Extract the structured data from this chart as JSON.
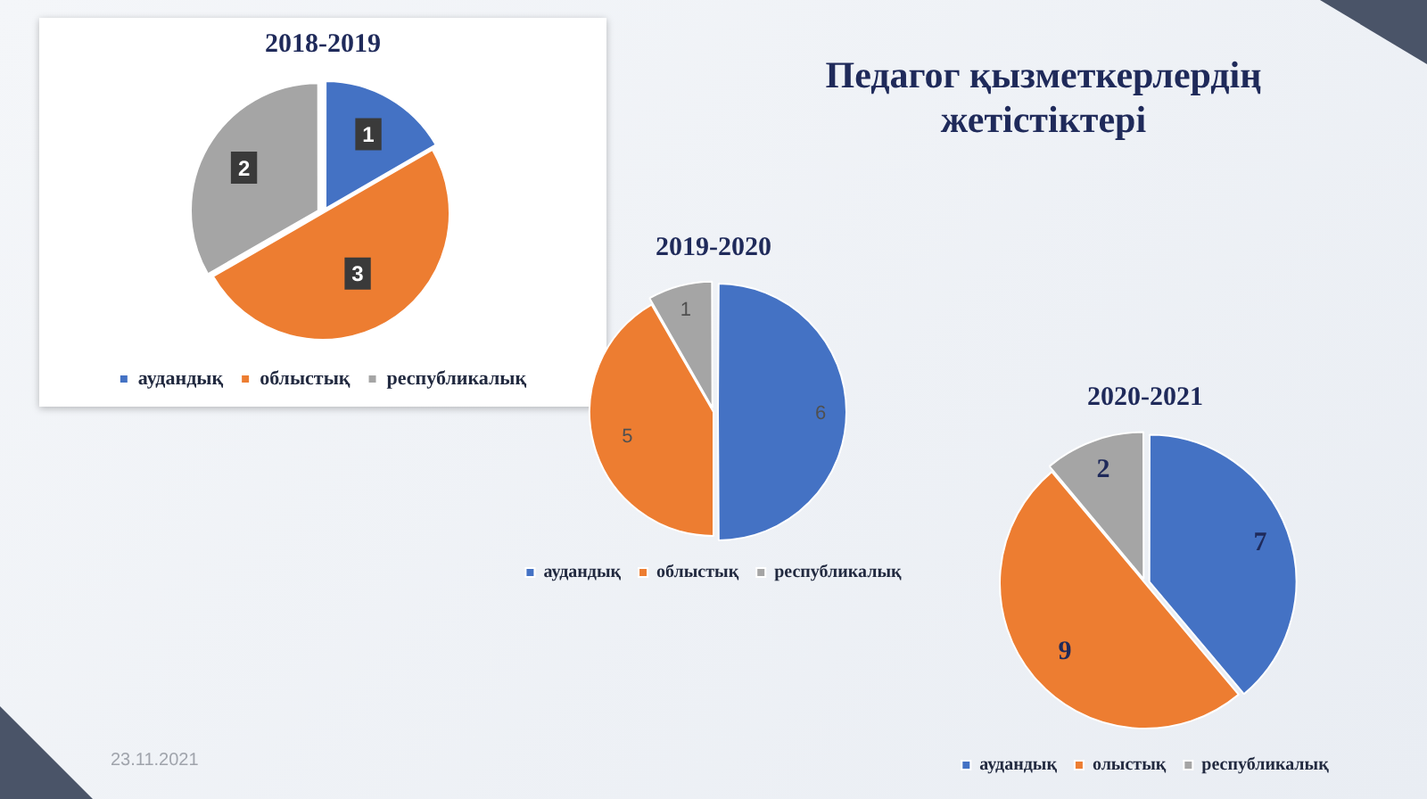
{
  "chart_data": [
    {
      "type": "other",
      "title": "Педагог қызметкерлердің жетістіктері",
      "annotations": [
        "23.11.2021"
      ]
    },
    {
      "type": "pie",
      "title": "2018-2019",
      "categories": [
        "аудандық",
        "облыстық",
        "республикалық"
      ],
      "values": [
        1,
        3,
        2
      ],
      "colors": [
        "#4472c4",
        "#ed7d31",
        "#a5a5a5"
      ],
      "data_labels": true,
      "legend": "bottom"
    },
    {
      "type": "pie",
      "title": "2019-2020",
      "categories": [
        "аудандық",
        "облыстық",
        "республикалық"
      ],
      "values": [
        6,
        5,
        1
      ],
      "colors": [
        "#4472c4",
        "#ed7d31",
        "#a5a5a5"
      ],
      "data_labels": true,
      "legend": "bottom"
    },
    {
      "type": "pie",
      "title": "2020-2021",
      "categories": [
        "аудандық",
        "олыстық",
        "республикалық"
      ],
      "values": [
        7,
        9,
        2
      ],
      "colors": [
        "#4472c4",
        "#ed7d31",
        "#a5a5a5"
      ],
      "data_labels": true,
      "legend": "bottom"
    }
  ]
}
